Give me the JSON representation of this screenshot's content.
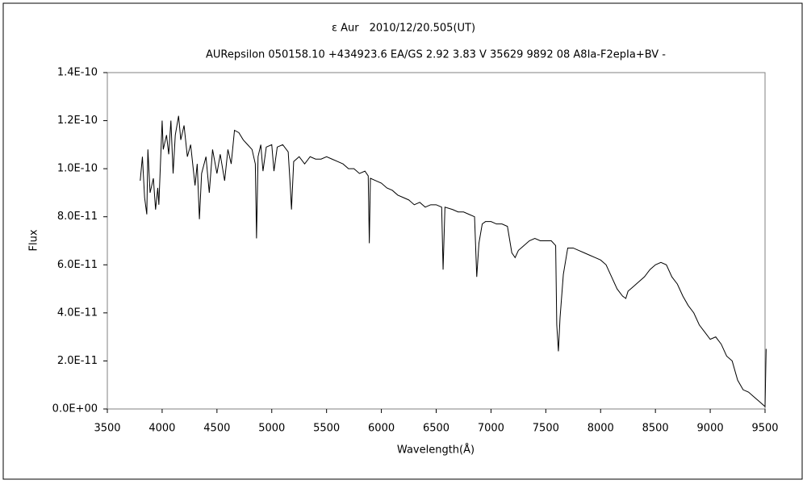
{
  "chart_data": {
    "type": "line",
    "title": "ε Aur　2010/12/20.505(UT)",
    "subtitle": "AURepsilon 050158.10 +434923.6 EA/GS 2.92 3.83 V 35629 9892 08 A8Ia-F2epIa+BV -",
    "x_label": "Wavelength(Å)",
    "y_label": "Flux",
    "color": "#000000",
    "xlim": [
      3500,
      9500
    ],
    "xticks": [
      3500,
      4000,
      4500,
      5000,
      5500,
      6000,
      6500,
      7000,
      7500,
      8000,
      8500,
      9000,
      9500
    ],
    "ylim": [
      0,
      1.4e-10
    ],
    "yticks": [
      {
        "value": 0,
        "label": "0.0E+00"
      },
      {
        "value": 2e-11,
        "label": "2.0E-11"
      },
      {
        "value": 4e-11,
        "label": "4.0E-11"
      },
      {
        "value": 6e-11,
        "label": "6.0E-11"
      },
      {
        "value": 8e-11,
        "label": "8.0E-11"
      },
      {
        "value": 1e-10,
        "label": "1.0E-10"
      },
      {
        "value": 1.2e-10,
        "label": "1.2E-10"
      },
      {
        "value": 1.4e-10,
        "label": "1.4E-10"
      }
    ],
    "x": [
      3800,
      3820,
      3840,
      3860,
      3870,
      3890,
      3920,
      3940,
      3960,
      3970,
      4000,
      4010,
      4040,
      4060,
      4080,
      4100,
      4120,
      4150,
      4170,
      4200,
      4230,
      4260,
      4300,
      4320,
      4340,
      4360,
      4400,
      4430,
      4460,
      4500,
      4530,
      4570,
      4600,
      4630,
      4660,
      4700,
      4740,
      4780,
      4820,
      4850,
      4861,
      4875,
      4900,
      4920,
      4950,
      5000,
      5020,
      5050,
      5100,
      5150,
      5170,
      5180,
      5200,
      5250,
      5300,
      5350,
      5400,
      5450,
      5500,
      5550,
      5600,
      5650,
      5700,
      5750,
      5800,
      5850,
      5880,
      5890,
      5900,
      5950,
      6000,
      6050,
      6100,
      6150,
      6200,
      6250,
      6300,
      6350,
      6400,
      6450,
      6500,
      6550,
      6563,
      6580,
      6650,
      6700,
      6750,
      6800,
      6850,
      6870,
      6890,
      6920,
      6950,
      7000,
      7050,
      7100,
      7150,
      7190,
      7220,
      7250,
      7300,
      7350,
      7400,
      7450,
      7500,
      7550,
      7590,
      7600,
      7615,
      7630,
      7660,
      7700,
      7750,
      7800,
      7850,
      7900,
      7950,
      8000,
      8050,
      8100,
      8150,
      8200,
      8230,
      8250,
      8300,
      8350,
      8400,
      8450,
      8500,
      8550,
      8600,
      8650,
      8700,
      8750,
      8800,
      8850,
      8900,
      8950,
      9000,
      9050,
      9100,
      9150,
      9200,
      9250,
      9300,
      9350,
      9400,
      9450,
      9500,
      9510
    ],
    "values": [
      9.5e-11,
      1.05e-10,
      8.8e-11,
      8.1e-11,
      1.08e-10,
      9e-11,
      9.6e-11,
      8.3e-11,
      9.2e-11,
      8.5e-11,
      1.2e-10,
      1.08e-10,
      1.14e-10,
      1.06e-10,
      1.2e-10,
      9.8e-11,
      1.14e-10,
      1.22e-10,
      1.12e-10,
      1.18e-10,
      1.05e-10,
      1.1e-10,
      9.3e-11,
      1.02e-10,
      7.9e-11,
      9.8e-11,
      1.05e-10,
      9e-11,
      1.08e-10,
      9.8e-11,
      1.06e-10,
      9.5e-11,
      1.08e-10,
      1.02e-10,
      1.16e-10,
      1.15e-10,
      1.12e-10,
      1.1e-10,
      1.08e-10,
      1.02e-10,
      7.1e-11,
      1.05e-10,
      1.1e-10,
      9.9e-11,
      1.09e-10,
      1.1e-10,
      9.9e-11,
      1.09e-10,
      1.1e-10,
      1.07e-10,
      9.2e-11,
      8.3e-11,
      1.03e-10,
      1.05e-10,
      1.02e-10,
      1.05e-10,
      1.04e-10,
      1.04e-10,
      1.05e-10,
      1.04e-10,
      1.03e-10,
      1.02e-10,
      1e-10,
      1e-10,
      9.8e-11,
      9.9e-11,
      9.7e-11,
      6.9e-11,
      9.6e-11,
      9.5e-11,
      9.4e-11,
      9.2e-11,
      9.1e-11,
      8.9e-11,
      8.8e-11,
      8.7e-11,
      8.5e-11,
      8.6e-11,
      8.4e-11,
      8.5e-11,
      8.5e-11,
      8.4e-11,
      5.8e-11,
      8.4e-11,
      8.3e-11,
      8.2e-11,
      8.2e-11,
      8.1e-11,
      8e-11,
      5.5e-11,
      6.9e-11,
      7.7e-11,
      7.8e-11,
      7.8e-11,
      7.7e-11,
      7.7e-11,
      7.6e-11,
      6.5e-11,
      6.3e-11,
      6.6e-11,
      6.8e-11,
      7e-11,
      7.1e-11,
      7e-11,
      7e-11,
      7e-11,
      6.8e-11,
      3.5e-11,
      2.4e-11,
      3.8e-11,
      5.6e-11,
      6.7e-11,
      6.7e-11,
      6.6e-11,
      6.5e-11,
      6.4e-11,
      6.3e-11,
      6.2e-11,
      6e-11,
      5.5e-11,
      5e-11,
      4.7e-11,
      4.6e-11,
      4.9e-11,
      5.1e-11,
      5.3e-11,
      5.5e-11,
      5.8e-11,
      6e-11,
      6.1e-11,
      6e-11,
      5.5e-11,
      5.2e-11,
      4.7e-11,
      4.3e-11,
      4e-11,
      3.5e-11,
      3.2e-11,
      2.9e-11,
      3e-11,
      2.7e-11,
      2.2e-11,
      2e-11,
      1.2e-11,
      8e-12,
      7e-12,
      5e-12,
      3e-12,
      1e-12,
      2.5e-11
    ]
  }
}
